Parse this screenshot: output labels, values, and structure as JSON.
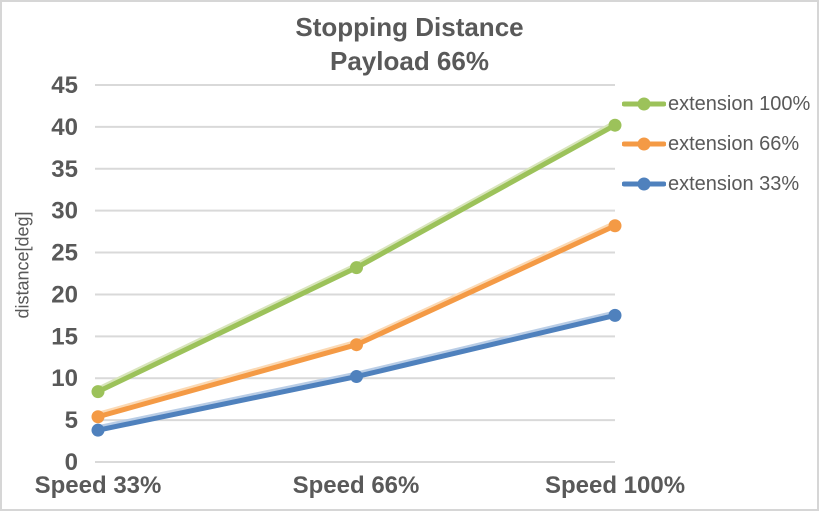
{
  "chart_data": {
    "type": "line",
    "title": "Stopping Distance",
    "subtitle": "Payload 66%",
    "ylabel": "distance[deg]",
    "categories": [
      "Speed 33%",
      "Speed 66%",
      "Speed 100%"
    ],
    "series": [
      {
        "name": "extension 100%",
        "color": "#9CC25A",
        "tint": "#D8E5BB",
        "values": [
          8.4,
          23.2,
          40.2
        ]
      },
      {
        "name": "extension 66%",
        "color": "#F49A45",
        "tint": "#FBD9B4",
        "values": [
          5.4,
          14.0,
          28.2
        ]
      },
      {
        "name": "extension 33%",
        "color": "#4F81BD",
        "tint": "#B9CDE6",
        "values": [
          3.8,
          10.2,
          17.5
        ]
      }
    ],
    "yticks": [
      0,
      5,
      10,
      15,
      20,
      25,
      30,
      35,
      40,
      45
    ],
    "ylim": [
      0,
      45
    ],
    "grid": true,
    "legend_position": "right",
    "colors": {
      "grid": "#D9D9D9",
      "border": "#D6D6D6",
      "text": "#595959",
      "background": "#FFFFFF"
    }
  }
}
